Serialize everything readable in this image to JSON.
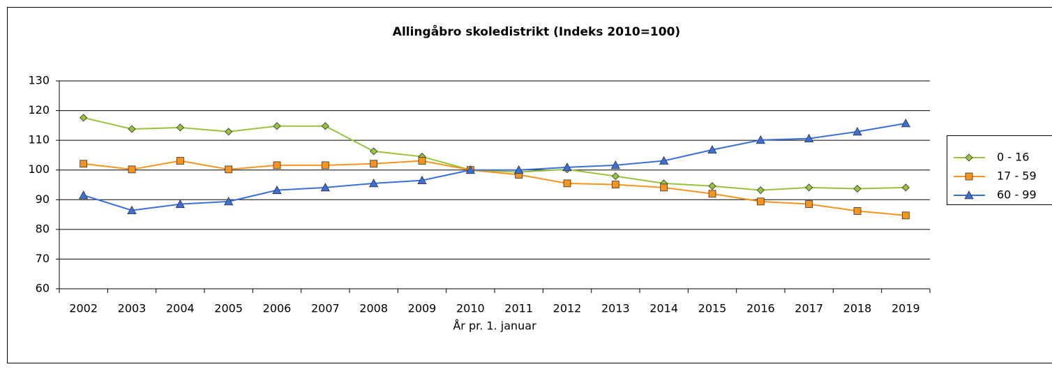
{
  "chart_data": {
    "type": "line",
    "title": "Allingåbro skoledistrikt (Indeks 2010=100)",
    "x_label": "År pr. 1. januar",
    "categories": [
      "2002",
      "2003",
      "2004",
      "2005",
      "2006",
      "2007",
      "2008",
      "2009",
      "2010",
      "2011",
      "2012",
      "2013",
      "2014",
      "2015",
      "2016",
      "2017",
      "2018",
      "2019"
    ],
    "series": [
      {
        "name": "0 - 16",
        "color": "#99c33a",
        "marker": "diamond",
        "values": [
          117.6,
          113.8,
          114.3,
          112.9,
          114.8,
          114.8,
          106.3,
          104.5,
          100,
          99.3,
          100.2,
          97.9,
          95.5,
          94.6,
          93.2,
          94.1,
          93.7,
          94.1
        ]
      },
      {
        "name": "17 - 59",
        "color": "#f7941d",
        "marker": "square",
        "values": [
          102.1,
          100.2,
          103.1,
          100.2,
          101.6,
          101.6,
          102.1,
          103.1,
          100,
          98.4,
          95.5,
          95.1,
          94.1,
          92.0,
          89.4,
          88.5,
          86.2,
          84.7
        ]
      },
      {
        "name": "60 - 99",
        "color": "#3b6fd9",
        "marker": "triangle",
        "values": [
          91.5,
          86.4,
          88.5,
          89.4,
          93.2,
          94.1,
          95.5,
          96.5,
          100,
          100,
          100.9,
          101.6,
          103.1,
          106.8,
          110.1,
          110.6,
          112.9,
          115.7
        ]
      }
    ],
    "ylim": [
      60,
      130
    ],
    "yticks": [
      60,
      70,
      80,
      90,
      100,
      110,
      120,
      130
    ],
    "grid": true,
    "legend": "right"
  }
}
